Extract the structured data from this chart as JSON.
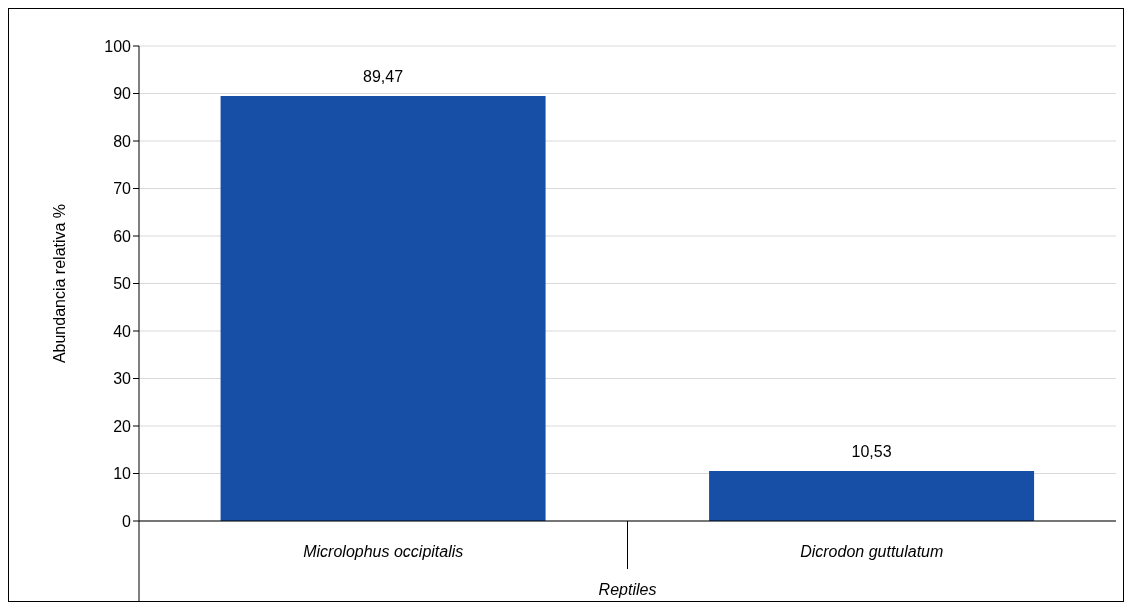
{
  "chart_data": {
    "type": "bar",
    "categories": [
      "Microlophus occipitalis",
      "Dicrodon guttulatum"
    ],
    "values": [
      89.47,
      10.53
    ],
    "value_labels": [
      "89,47",
      "10,53"
    ],
    "color": "#174ea6",
    "xlabel": "Reptiles",
    "ylabel": "Abundancia relativa %",
    "ylim": [
      0,
      100
    ],
    "yticks": [
      0,
      10,
      20,
      30,
      40,
      50,
      60,
      70,
      80,
      90,
      100
    ],
    "grid": "y",
    "legend": false
  }
}
